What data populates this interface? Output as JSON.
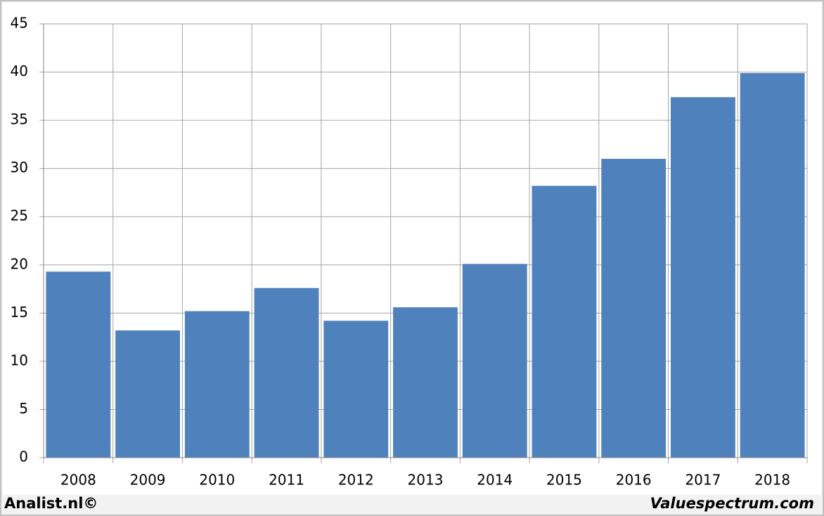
{
  "chart_data": {
    "type": "bar",
    "categories": [
      "2008",
      "2009",
      "2010",
      "2011",
      "2012",
      "2013",
      "2014",
      "2015",
      "2016",
      "2017",
      "2018"
    ],
    "values": [
      19.3,
      13.2,
      15.2,
      17.6,
      14.2,
      15.6,
      20.1,
      28.2,
      31.0,
      37.4,
      39.9
    ],
    "color": "#4f81bd",
    "ylim": [
      0,
      45
    ],
    "yticks": [
      0,
      5,
      10,
      15,
      20,
      25,
      30,
      35,
      40,
      45
    ],
    "grid": true
  },
  "credits": {
    "left": "Analist.nl©",
    "right": "Valuespectrum.com"
  }
}
